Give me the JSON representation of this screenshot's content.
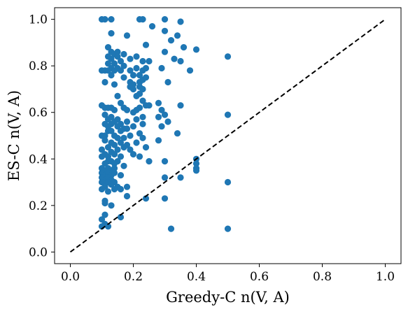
{
  "chart_data": {
    "type": "scatter",
    "xlabel": "Greedy-C n(V, A)",
    "ylabel": "ES-C n(V, A)",
    "xlim": [
      -0.05,
      1.05
    ],
    "ylim": [
      -0.05,
      1.05
    ],
    "x_ticks": [
      "0.0",
      "0.2",
      "0.4",
      "0.6",
      "0.8",
      "1.0"
    ],
    "y_ticks": [
      "0.0",
      "0.2",
      "0.4",
      "0.6",
      "0.8",
      "1.0"
    ],
    "grid": false,
    "reference_line": {
      "style": "dashed",
      "color": "#000000",
      "from": [
        0,
        0
      ],
      "to": [
        1,
        1
      ]
    },
    "marker_color": "#1f77b4",
    "series": [
      {
        "points": [
          [
            0.1,
            1.0
          ],
          [
            0.11,
            1.0
          ],
          [
            0.13,
            1.0
          ],
          [
            0.22,
            1.0
          ],
          [
            0.23,
            1.0
          ],
          [
            0.3,
            1.0
          ],
          [
            0.35,
            0.99
          ],
          [
            0.3,
            0.95
          ],
          [
            0.34,
            0.93
          ],
          [
            0.26,
            0.97
          ],
          [
            0.13,
            0.94
          ],
          [
            0.18,
            0.93
          ],
          [
            0.32,
            0.91
          ],
          [
            0.3,
            0.86
          ],
          [
            0.36,
            0.88
          ],
          [
            0.4,
            0.87
          ],
          [
            0.5,
            0.84
          ],
          [
            0.24,
            0.89
          ],
          [
            0.12,
            0.88
          ],
          [
            0.13,
            0.86
          ],
          [
            0.14,
            0.85
          ],
          [
            0.15,
            0.86
          ],
          [
            0.17,
            0.85
          ],
          [
            0.12,
            0.84
          ],
          [
            0.13,
            0.83
          ],
          [
            0.15,
            0.84
          ],
          [
            0.16,
            0.82
          ],
          [
            0.19,
            0.83
          ],
          [
            0.21,
            0.84
          ],
          [
            0.25,
            0.82
          ],
          [
            0.33,
            0.83
          ],
          [
            0.35,
            0.82
          ],
          [
            0.23,
            0.82
          ],
          [
            0.14,
            0.81
          ],
          [
            0.12,
            0.81
          ],
          [
            0.17,
            0.8
          ],
          [
            0.1,
            0.78
          ],
          [
            0.11,
            0.78
          ],
          [
            0.12,
            0.78
          ],
          [
            0.13,
            0.79
          ],
          [
            0.14,
            0.78
          ],
          [
            0.15,
            0.79
          ],
          [
            0.16,
            0.78
          ],
          [
            0.19,
            0.78
          ],
          [
            0.21,
            0.79
          ],
          [
            0.23,
            0.78
          ],
          [
            0.24,
            0.79
          ],
          [
            0.29,
            0.79
          ],
          [
            0.38,
            0.78
          ],
          [
            0.13,
            0.76
          ],
          [
            0.17,
            0.75
          ],
          [
            0.2,
            0.76
          ],
          [
            0.22,
            0.76
          ],
          [
            0.11,
            0.73
          ],
          [
            0.14,
            0.72
          ],
          [
            0.19,
            0.73
          ],
          [
            0.2,
            0.72
          ],
          [
            0.22,
            0.73
          ],
          [
            0.23,
            0.74
          ],
          [
            0.24,
            0.75
          ],
          [
            0.31,
            0.73
          ],
          [
            0.19,
            0.71
          ],
          [
            0.2,
            0.7
          ],
          [
            0.22,
            0.71
          ],
          [
            0.23,
            0.7
          ],
          [
            0.21,
            0.67
          ],
          [
            0.22,
            0.68
          ],
          [
            0.23,
            0.65
          ],
          [
            0.15,
            0.67
          ],
          [
            0.24,
            0.63
          ],
          [
            0.1,
            0.63
          ],
          [
            0.11,
            0.62
          ],
          [
            0.12,
            0.62
          ],
          [
            0.13,
            0.62
          ],
          [
            0.14,
            0.61
          ],
          [
            0.16,
            0.64
          ],
          [
            0.17,
            0.62
          ],
          [
            0.18,
            0.61
          ],
          [
            0.2,
            0.6
          ],
          [
            0.21,
            0.61
          ],
          [
            0.22,
            0.62
          ],
          [
            0.25,
            0.63
          ],
          [
            0.28,
            0.64
          ],
          [
            0.29,
            0.61
          ],
          [
            0.3,
            0.59
          ],
          [
            0.35,
            0.63
          ],
          [
            0.5,
            0.59
          ],
          [
            0.11,
            0.59
          ],
          [
            0.12,
            0.57
          ],
          [
            0.13,
            0.58
          ],
          [
            0.14,
            0.56
          ],
          [
            0.15,
            0.57
          ],
          [
            0.16,
            0.55
          ],
          [
            0.18,
            0.56
          ],
          [
            0.21,
            0.57
          ],
          [
            0.23,
            0.58
          ],
          [
            0.28,
            0.58
          ],
          [
            0.11,
            0.55
          ],
          [
            0.12,
            0.54
          ],
          [
            0.13,
            0.55
          ],
          [
            0.15,
            0.54
          ],
          [
            0.17,
            0.53
          ],
          [
            0.2,
            0.54
          ],
          [
            0.23,
            0.55
          ],
          [
            0.31,
            0.56
          ],
          [
            0.12,
            0.52
          ],
          [
            0.13,
            0.52
          ],
          [
            0.16,
            0.52
          ],
          [
            0.18,
            0.53
          ],
          [
            0.22,
            0.51
          ],
          [
            0.29,
            0.54
          ],
          [
            0.34,
            0.51
          ],
          [
            0.1,
            0.5
          ],
          [
            0.11,
            0.5
          ],
          [
            0.14,
            0.5
          ],
          [
            0.15,
            0.49
          ],
          [
            0.17,
            0.49
          ],
          [
            0.19,
            0.5
          ],
          [
            0.23,
            0.49
          ],
          [
            0.28,
            0.48
          ],
          [
            0.11,
            0.48
          ],
          [
            0.13,
            0.47
          ],
          [
            0.14,
            0.46
          ],
          [
            0.16,
            0.47
          ],
          [
            0.18,
            0.46
          ],
          [
            0.21,
            0.47
          ],
          [
            0.24,
            0.45
          ],
          [
            0.1,
            0.44
          ],
          [
            0.12,
            0.45
          ],
          [
            0.13,
            0.43
          ],
          [
            0.15,
            0.44
          ],
          [
            0.17,
            0.45
          ],
          [
            0.19,
            0.44
          ],
          [
            0.1,
            0.41
          ],
          [
            0.11,
            0.42
          ],
          [
            0.12,
            0.41
          ],
          [
            0.14,
            0.42
          ],
          [
            0.16,
            0.41
          ],
          [
            0.2,
            0.42
          ],
          [
            0.22,
            0.41
          ],
          [
            0.12,
            0.39
          ],
          [
            0.13,
            0.39
          ],
          [
            0.14,
            0.38
          ],
          [
            0.15,
            0.39
          ],
          [
            0.11,
            0.38
          ],
          [
            0.17,
            0.37
          ],
          [
            0.25,
            0.39
          ],
          [
            0.3,
            0.39
          ],
          [
            0.4,
            0.4
          ],
          [
            0.4,
            0.38
          ],
          [
            0.4,
            0.36
          ],
          [
            0.4,
            0.35
          ],
          [
            0.1,
            0.36
          ],
          [
            0.11,
            0.35
          ],
          [
            0.12,
            0.36
          ],
          [
            0.13,
            0.35
          ],
          [
            0.14,
            0.36
          ],
          [
            0.16,
            0.33
          ],
          [
            0.1,
            0.34
          ],
          [
            0.11,
            0.33
          ],
          [
            0.12,
            0.34
          ],
          [
            0.13,
            0.33
          ],
          [
            0.14,
            0.34
          ],
          [
            0.1,
            0.32
          ],
          [
            0.11,
            0.31
          ],
          [
            0.12,
            0.32
          ],
          [
            0.13,
            0.31
          ],
          [
            0.14,
            0.3
          ],
          [
            0.1,
            0.3
          ],
          [
            0.11,
            0.29
          ],
          [
            0.12,
            0.3
          ],
          [
            0.13,
            0.29
          ],
          [
            0.15,
            0.28
          ],
          [
            0.1,
            0.27
          ],
          [
            0.11,
            0.28
          ],
          [
            0.12,
            0.26
          ],
          [
            0.14,
            0.27
          ],
          [
            0.16,
            0.27
          ],
          [
            0.18,
            0.28
          ],
          [
            0.35,
            0.32
          ],
          [
            0.3,
            0.32
          ],
          [
            0.5,
            0.3
          ],
          [
            0.18,
            0.24
          ],
          [
            0.24,
            0.23
          ],
          [
            0.3,
            0.23
          ],
          [
            0.11,
            0.22
          ],
          [
            0.11,
            0.21
          ],
          [
            0.13,
            0.2
          ],
          [
            0.1,
            0.14
          ],
          [
            0.11,
            0.12
          ],
          [
            0.1,
            0.11
          ],
          [
            0.16,
            0.15
          ],
          [
            0.11,
            0.16
          ],
          [
            0.12,
            0.11
          ],
          [
            0.32,
            0.1
          ],
          [
            0.5,
            0.1
          ]
        ]
      }
    ]
  }
}
